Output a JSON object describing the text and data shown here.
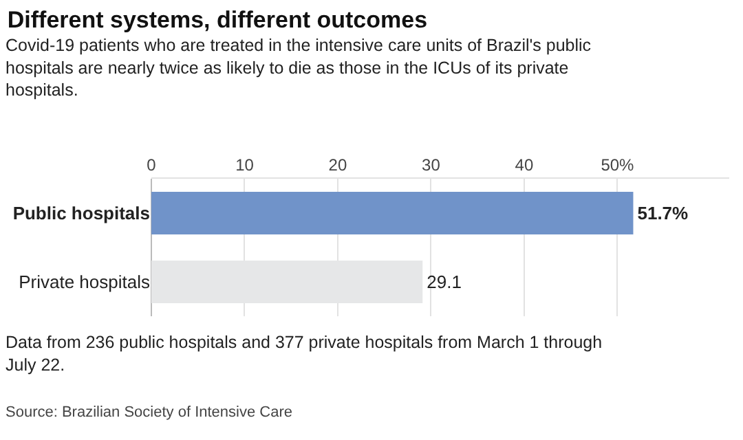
{
  "chart_data": {
    "type": "bar",
    "orientation": "horizontal",
    "title": "Different systems, different outcomes",
    "subtitle": "Covid-19 patients who are treated in the intensive care units of Brazil's public hospitals are nearly twice as likely to die as those in the ICUs of its private hospitals.",
    "categories": [
      "Public hospitals",
      "Private hospitals"
    ],
    "values": [
      51.7,
      29.1
    ],
    "colors": [
      "#7093c9",
      "#e6e7e8"
    ],
    "value_labels": [
      "51.7%",
      "29.1"
    ],
    "xlim": [
      0,
      62
    ],
    "xticks": [
      0,
      10,
      20,
      30,
      40,
      {
        "value": 50,
        "label": "50%"
      }
    ],
    "grid": "x",
    "annotations": [
      "Data from 236 public hospitals and 377 private hospitals from March 1 through July 22.",
      "Source: Brazilian Society of Intensive Care"
    ]
  }
}
